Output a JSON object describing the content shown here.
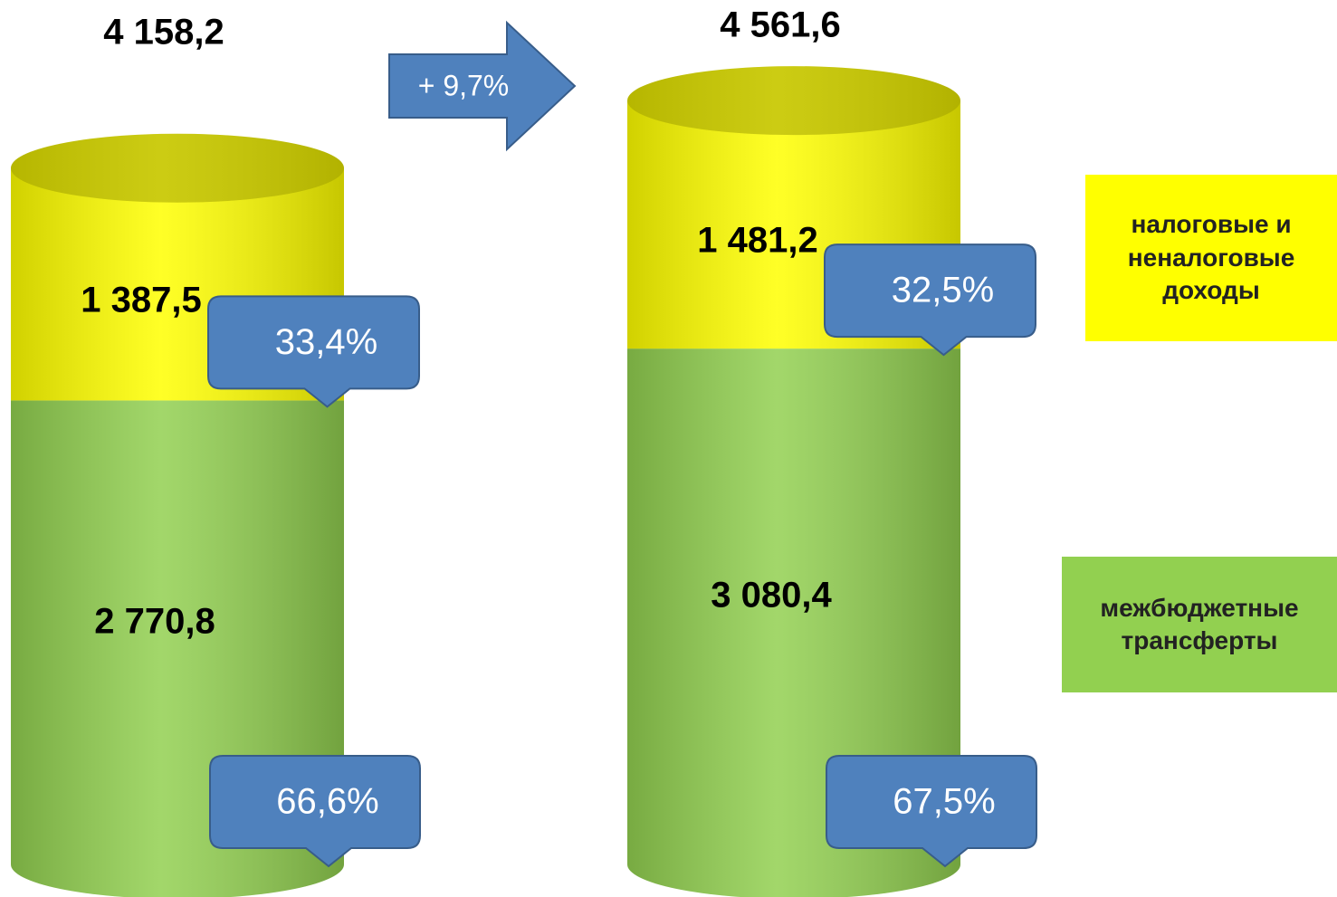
{
  "chart_data": {
    "type": "stacked-cylinder",
    "categories": [
      null,
      null
    ],
    "series": [
      {
        "name": "межбюджетные трансферты",
        "color": "#92d050",
        "values": [
          2770.8,
          3080.4
        ],
        "value_labels": [
          "2 770,8",
          "3 080,4"
        ],
        "shares": [
          66.6,
          67.5
        ],
        "share_labels": [
          "66,6%",
          "67,5%"
        ]
      },
      {
        "name": "налоговые и неналоговые доходы",
        "color": "#ffff00",
        "values": [
          1387.5,
          1481.2
        ],
        "value_labels": [
          "1 387,5",
          "1 481,2"
        ],
        "shares": [
          33.4,
          32.5
        ],
        "share_labels": [
          "33,4%",
          "32,5%"
        ]
      }
    ],
    "totals": [
      4158.2,
      4561.6
    ],
    "total_labels": [
      "4 158,2",
      "4 561,6"
    ],
    "annotation": "+ 9,7%"
  }
}
